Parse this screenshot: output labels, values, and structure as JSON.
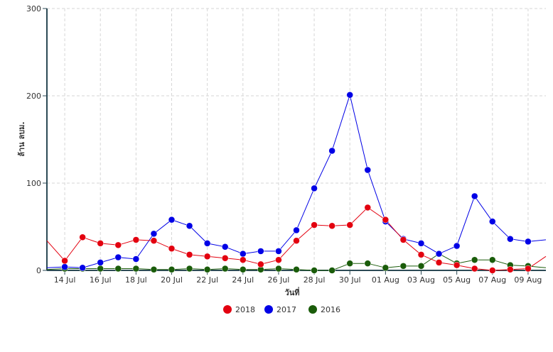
{
  "chart_data": {
    "type": "line",
    "xlabel": "วันที่",
    "ylabel": "ล้าน ลบม.",
    "ylim": [
      0,
      300
    ],
    "yticks": [
      "0",
      "100",
      "200",
      "300"
    ],
    "grid": true,
    "legend_position": "bottom",
    "dates": [
      "13 Jul",
      "14 Jul",
      "15 Jul",
      "16 Jul",
      "17 Jul",
      "18 Jul",
      "19 Jul",
      "20 Jul",
      "21 Jul",
      "22 Jul",
      "23 Jul",
      "24 Jul",
      "25 Jul",
      "26 Jul",
      "27 Jul",
      "28 Jul",
      "29 Jul",
      "30 Jul",
      "31 Jul",
      "01 Aug",
      "02 Aug",
      "03 Aug",
      "04 Aug",
      "05 Aug",
      "06 Aug",
      "07 Aug",
      "08 Aug",
      "09 Aug",
      "10 Aug"
    ],
    "xticks": [
      "14 Jul",
      "16 Jul",
      "18 Jul",
      "20 Jul",
      "22 Jul",
      "24 Jul",
      "26 Jul",
      "28 Jul",
      "30 Jul",
      "01 Aug",
      "03 Aug",
      "05 Aug",
      "07 Aug",
      "09 Aug"
    ],
    "series": [
      {
        "name": "2018",
        "color": "#e3000f",
        "markers_from": "14 Jul",
        "values": [
          34,
          11,
          38,
          31,
          29,
          35,
          34,
          25,
          18,
          16,
          14,
          12,
          7,
          12,
          34,
          52,
          51,
          52,
          72,
          58,
          35,
          18,
          9,
          6,
          2,
          0,
          1,
          2,
          16
        ]
      },
      {
        "name": "2017",
        "color": "#0000e6",
        "markers_from": "14 Jul",
        "values": [
          3,
          4,
          3,
          9,
          15,
          13,
          42,
          58,
          51,
          31,
          27,
          19,
          22,
          22,
          46,
          94,
          137,
          201,
          115,
          56,
          36,
          31,
          19,
          28,
          85,
          56,
          36,
          33,
          35
        ]
      },
      {
        "name": "2016",
        "color": "#1a5c0a",
        "markers_from": "14 Jul",
        "values": [
          1,
          2,
          2,
          2,
          2,
          2,
          1,
          1,
          2,
          1,
          2,
          1,
          1,
          2,
          1,
          0,
          0,
          8,
          8,
          3,
          5,
          5,
          19,
          8,
          12,
          12,
          6,
          5,
          3
        ]
      }
    ]
  }
}
